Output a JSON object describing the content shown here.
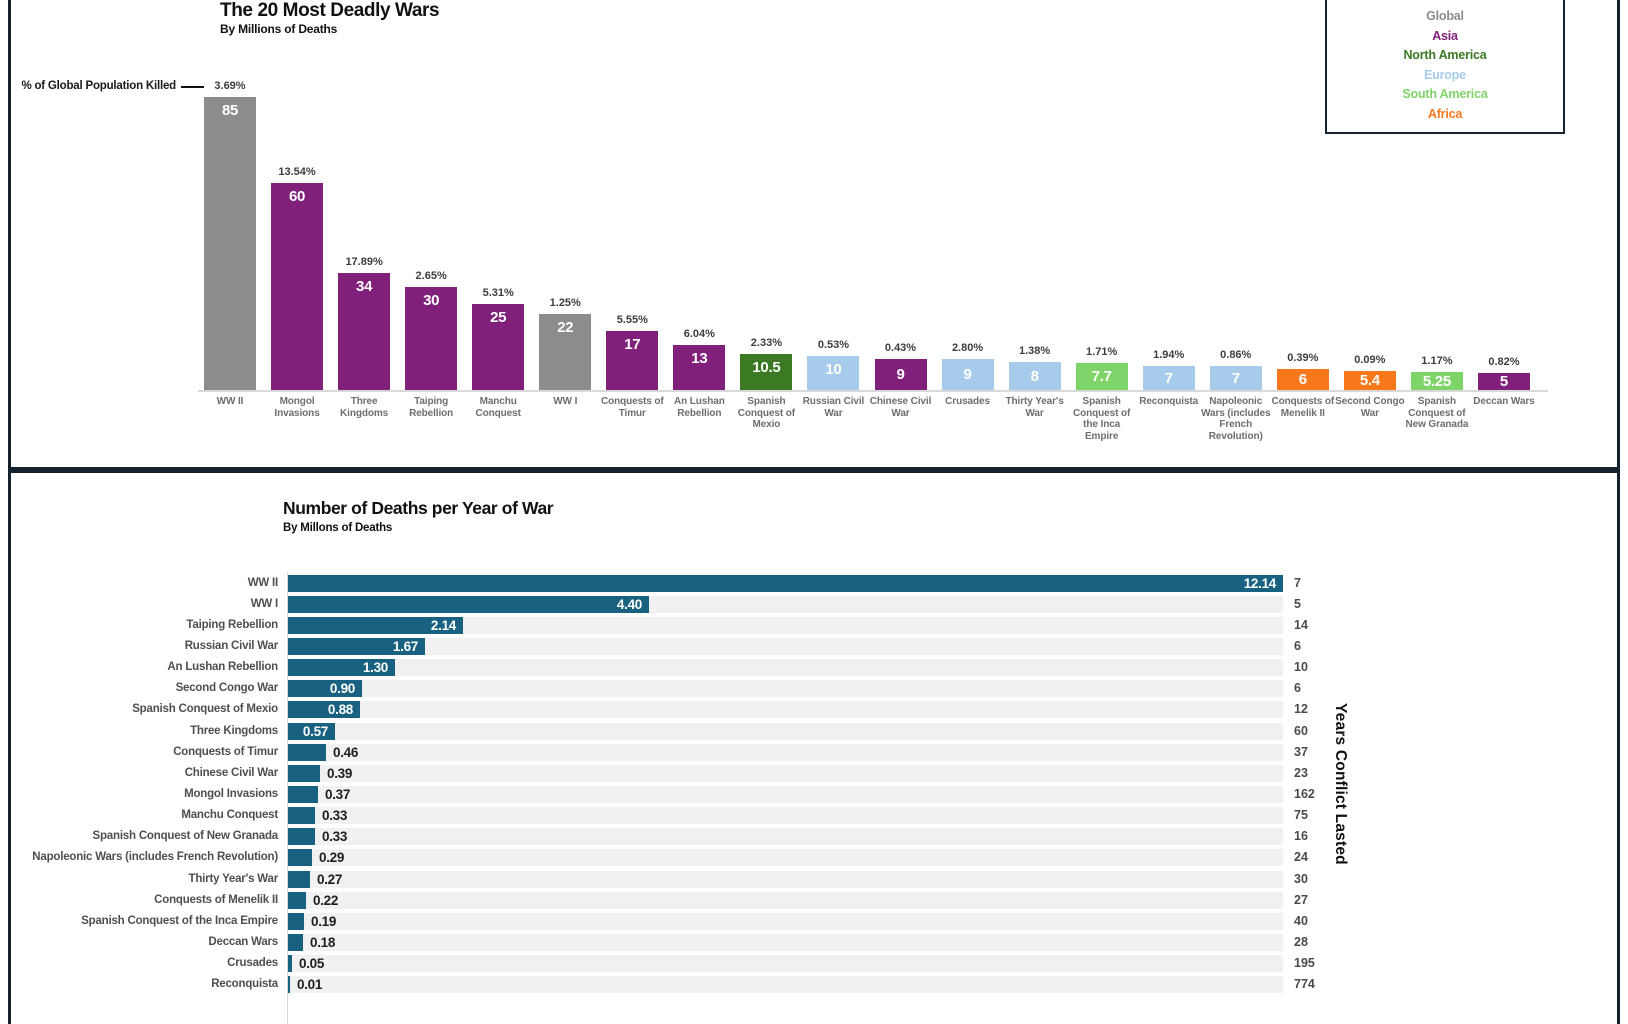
{
  "colors": {
    "global": "#8c8c8c",
    "asia": "#81207a",
    "north_america": "#3b7a23",
    "europe": "#a7cbeb",
    "south_america": "#7fd469",
    "africa": "#f8781b",
    "bar_teal": "#186181",
    "track_gray": "#f1f1f1",
    "panel_border": "#13222e"
  },
  "legend": {
    "items": [
      {
        "label": "Global",
        "region": "global"
      },
      {
        "label": "Asia",
        "region": "asia"
      },
      {
        "label": "North America",
        "region": "north_america"
      },
      {
        "label": "Europe",
        "region": "europe"
      },
      {
        "label": "South America",
        "region": "south_america"
      },
      {
        "label": "Africa",
        "region": "africa"
      }
    ]
  },
  "chart_data": [
    {
      "type": "bar",
      "orientation": "vertical",
      "title": "The 20 Most Deadly Wars",
      "subtitle": "By Millions of Deaths",
      "annotation_label": "% of Global Population Killed",
      "unit": "millions of deaths",
      "ylim": [
        0,
        85
      ],
      "legend_position": "top-right",
      "bars": [
        {
          "label": "WW II",
          "value": 85,
          "display": "85",
          "pct": "3.69%",
          "region": "global"
        },
        {
          "label": "Mongol Invasions",
          "value": 60,
          "display": "60",
          "pct": "13.54%",
          "region": "asia"
        },
        {
          "label": "Three Kingdoms",
          "value": 34,
          "display": "34",
          "pct": "17.89%",
          "region": "asia"
        },
        {
          "label": "Taiping Rebellion",
          "value": 30,
          "display": "30",
          "pct": "2.65%",
          "region": "asia"
        },
        {
          "label": "Manchu Conquest",
          "value": 25,
          "display": "25",
          "pct": "5.31%",
          "region": "asia"
        },
        {
          "label": "WW I",
          "value": 22,
          "display": "22",
          "pct": "1.25%",
          "region": "global"
        },
        {
          "label": "Conquests of Timur",
          "value": 17,
          "display": "17",
          "pct": "5.55%",
          "region": "asia"
        },
        {
          "label": "An Lushan Rebellion",
          "value": 13,
          "display": "13",
          "pct": "6.04%",
          "region": "asia"
        },
        {
          "label": "Spanish Conquest of Mexio",
          "value": 10.5,
          "display": "10.5",
          "pct": "2.33%",
          "region": "north_america"
        },
        {
          "label": "Russian Civil War",
          "value": 10,
          "display": "10",
          "pct": "0.53%",
          "region": "europe"
        },
        {
          "label": "Chinese Civil War",
          "value": 9,
          "display": "9",
          "pct": "0.43%",
          "region": "asia"
        },
        {
          "label": "Crusades",
          "value": 9,
          "display": "9",
          "pct": "2.80%",
          "region": "europe"
        },
        {
          "label": "Thirty Year's War",
          "value": 8,
          "display": "8",
          "pct": "1.38%",
          "region": "europe"
        },
        {
          "label": "Spanish Conquest of the Inca Empire",
          "value": 7.7,
          "display": "7.7",
          "pct": "1.71%",
          "region": "south_america"
        },
        {
          "label": "Reconquista",
          "value": 7,
          "display": "7",
          "pct": "1.94%",
          "region": "europe"
        },
        {
          "label": "Napoleonic Wars (includes French Revolution)",
          "value": 7,
          "display": "7",
          "pct": "0.86%",
          "region": "europe"
        },
        {
          "label": "Conquests of Menelik II",
          "value": 6,
          "display": "6",
          "pct": "0.39%",
          "region": "africa"
        },
        {
          "label": "Second Congo War",
          "value": 5.4,
          "display": "5.4",
          "pct": "0.09%",
          "region": "africa"
        },
        {
          "label": "Spanish Conquest of New Granada",
          "value": 5.25,
          "display": "5.25",
          "pct": "1.17%",
          "region": "south_america"
        },
        {
          "label": "Deccan Wars",
          "value": 5,
          "display": "5",
          "pct": "0.82%",
          "region": "asia"
        }
      ]
    },
    {
      "type": "bar",
      "orientation": "horizontal",
      "title": "Number of Deaths per Year of War",
      "subtitle": "By Millons of Deaths",
      "right_axis_label": "Years Conflict Lasted",
      "xlim": [
        0,
        12.14
      ],
      "bars": [
        {
          "label": "WW II",
          "value": 12.14,
          "display": "12.14",
          "years": "7"
        },
        {
          "label": "WW I",
          "value": 4.4,
          "display": "4.40",
          "years": "5"
        },
        {
          "label": "Taiping Rebellion",
          "value": 2.14,
          "display": "2.14",
          "years": "14"
        },
        {
          "label": "Russian Civil War",
          "value": 1.67,
          "display": "1.67",
          "years": "6"
        },
        {
          "label": "An Lushan Rebellion",
          "value": 1.3,
          "display": "1.30",
          "years": "10"
        },
        {
          "label": "Second Congo War",
          "value": 0.9,
          "display": "0.90",
          "years": "6"
        },
        {
          "label": "Spanish Conquest of Mexio",
          "value": 0.88,
          "display": "0.88",
          "years": "12"
        },
        {
          "label": "Three Kingdoms",
          "value": 0.57,
          "display": "0.57",
          "years": "60"
        },
        {
          "label": "Conquests of Timur",
          "value": 0.46,
          "display": "0.46",
          "years": "37"
        },
        {
          "label": "Chinese Civil War",
          "value": 0.39,
          "display": "0.39",
          "years": "23"
        },
        {
          "label": "Mongol Invasions",
          "value": 0.37,
          "display": "0.37",
          "years": "162"
        },
        {
          "label": "Manchu Conquest",
          "value": 0.33,
          "display": "0.33",
          "years": "75"
        },
        {
          "label": "Spanish Conquest of New Granada",
          "value": 0.33,
          "display": "0.33",
          "years": "16"
        },
        {
          "label": "Napoleonic Wars (includes French Revolution)",
          "value": 0.29,
          "display": "0.29",
          "years": "24"
        },
        {
          "label": "Thirty Year's War",
          "value": 0.27,
          "display": "0.27",
          "years": "30"
        },
        {
          "label": "Conquests of Menelik II",
          "value": 0.22,
          "display": "0.22",
          "years": "27"
        },
        {
          "label": "Spanish Conquest of the Inca Empire",
          "value": 0.19,
          "display": "0.19",
          "years": "40"
        },
        {
          "label": "Deccan Wars",
          "value": 0.18,
          "display": "0.18",
          "years": "28"
        },
        {
          "label": "Crusades",
          "value": 0.05,
          "display": "0.05",
          "years": "195"
        },
        {
          "label": "Reconquista",
          "value": 0.01,
          "display": "0.01",
          "years": "774"
        }
      ]
    }
  ]
}
